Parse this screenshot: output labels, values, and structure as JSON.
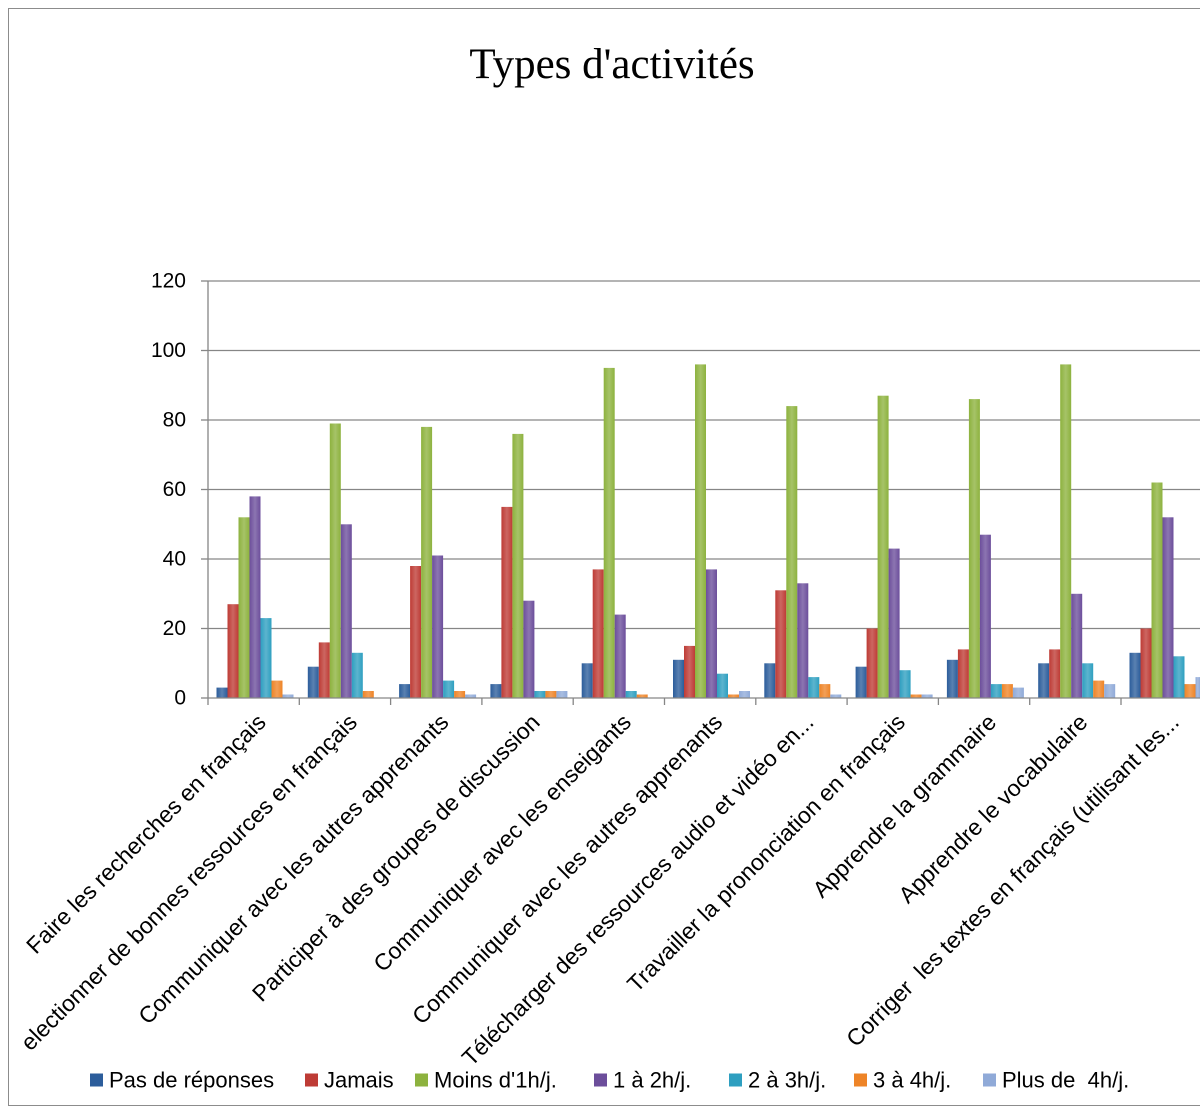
{
  "chart_data": {
    "type": "bar",
    "title": "Types d'activités",
    "ylim": [
      0,
      120
    ],
    "yticks": [
      0,
      20,
      40,
      60,
      80,
      100,
      120
    ],
    "grid": true,
    "legend": "bottom",
    "categories": [
      "Faire les recherches en français",
      "electionner de bonnes ressources en français",
      "Communiquer avec les autres apprenants",
      "Participer à des groupes de discussion",
      "Communiquer avec les enseigants",
      "Communiquer avec les autres apprenants",
      "Télécharger des ressources audio et vidéo en...",
      "Travailler la prononciation en français",
      "Apprendre la grammaire",
      "Apprendre le vocabulaire",
      "Corriger  les textes en français (utilisant les..."
    ],
    "series": [
      {
        "name": "Pas de réponses",
        "color": "#2C5D9B",
        "values": [
          3,
          9,
          4,
          4,
          10,
          11,
          10,
          9,
          11,
          10,
          13
        ]
      },
      {
        "name": "Jamais",
        "color": "#BE3B35",
        "values": [
          27,
          16,
          38,
          55,
          37,
          15,
          31,
          20,
          14,
          14,
          20
        ]
      },
      {
        "name": "Moins d'1h/j.",
        "color": "#8DB23E",
        "values": [
          52,
          79,
          78,
          76,
          95,
          96,
          84,
          87,
          86,
          96,
          62
        ]
      },
      {
        "name": "1 à 2h/j.",
        "color": "#6C4E9B",
        "values": [
          58,
          50,
          41,
          28,
          24,
          37,
          33,
          43,
          47,
          30,
          52
        ]
      },
      {
        "name": "2 à 3h/j.",
        "color": "#2E9FC0",
        "values": [
          23,
          13,
          5,
          2,
          2,
          7,
          6,
          8,
          4,
          10,
          12
        ]
      },
      {
        "name": "3 à 4h/j.",
        "color": "#EE8427",
        "values": [
          5,
          2,
          2,
          2,
          1,
          1,
          4,
          1,
          4,
          5,
          4
        ]
      },
      {
        "name": "Plus de  4h/j.",
        "color": "#90AAD8",
        "values": [
          1,
          0,
          1,
          2,
          0,
          2,
          1,
          1,
          3,
          4,
          6
        ]
      }
    ]
  }
}
